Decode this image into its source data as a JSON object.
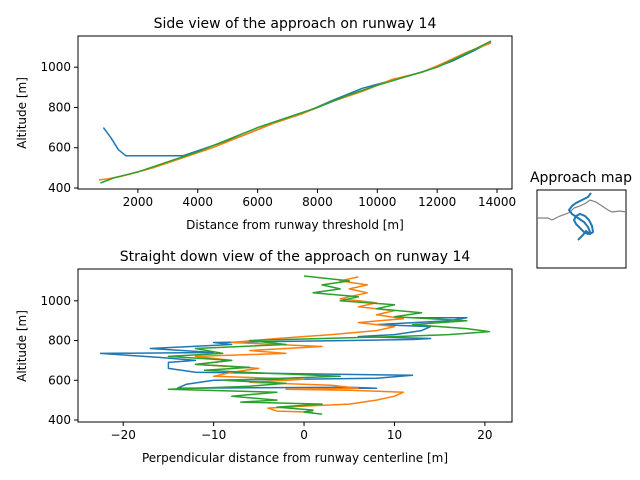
{
  "colors": {
    "series_1": "#1f77b4",
    "series_2": "#ff7f0e",
    "series_3": "#2ca02c",
    "map_line": "#808080"
  },
  "chart_data": [
    {
      "type": "line",
      "title": "Side view of the approach on runway 14",
      "xlabel": "Distance from runway threshold [m]",
      "ylabel": "Altitude [m]",
      "xlim": [
        0,
        14500
      ],
      "ylim": [
        395,
        1155
      ],
      "x_ticks": [
        2000,
        4000,
        6000,
        8000,
        10000,
        12000,
        14000
      ],
      "y_ticks": [
        400,
        600,
        800,
        1000
      ],
      "grid": false,
      "series": [
        {
          "color": "#1f77b4",
          "points": [
            [
              850,
              700
            ],
            [
              1100,
              650
            ],
            [
              1350,
              590
            ],
            [
              1600,
              560
            ],
            [
              2500,
              560
            ],
            [
              3500,
              560
            ],
            [
              4500,
              610
            ],
            [
              5500,
              660
            ],
            [
              6500,
              720
            ],
            [
              7500,
              770
            ],
            [
              8500,
              835
            ],
            [
              9500,
              895
            ],
            [
              10500,
              935
            ],
            [
              11500,
              975
            ],
            [
              12500,
              1030
            ],
            [
              13200,
              1080
            ],
            [
              13800,
              1125
            ]
          ]
        },
        {
          "color": "#ff7f0e",
          "points": [
            [
              700,
              440
            ],
            [
              1000,
              445
            ],
            [
              1500,
              460
            ],
            [
              2500,
              500
            ],
            [
              3500,
              550
            ],
            [
              4500,
              600
            ],
            [
              5500,
              660
            ],
            [
              6500,
              720
            ],
            [
              7500,
              770
            ],
            [
              8500,
              830
            ],
            [
              9500,
              880
            ],
            [
              10500,
              940
            ],
            [
              11500,
              975
            ],
            [
              12200,
              1020
            ],
            [
              13000,
              1075
            ],
            [
              13800,
              1120
            ]
          ]
        },
        {
          "color": "#2ca02c",
          "points": [
            [
              750,
              425
            ],
            [
              1200,
              450
            ],
            [
              2000,
              480
            ],
            [
              3000,
              530
            ],
            [
              4000,
              580
            ],
            [
              5000,
              640
            ],
            [
              6000,
              700
            ],
            [
              7000,
              750
            ],
            [
              8000,
              800
            ],
            [
              9000,
              860
            ],
            [
              10000,
              910
            ],
            [
              11000,
              955
            ],
            [
              12000,
              1000
            ],
            [
              13000,
              1070
            ],
            [
              13800,
              1130
            ]
          ]
        }
      ]
    },
    {
      "type": "line",
      "title": "Straight down view of the approach on runway 14",
      "xlabel": "Perpendicular distance from runway centerline [m]",
      "ylabel": "Altitude [m]",
      "xlim": [
        -25,
        23
      ],
      "ylim": [
        390,
        1160
      ],
      "x_ticks": [
        -20,
        -10,
        0,
        10,
        20
      ],
      "y_ticks": [
        400,
        600,
        800,
        1000
      ],
      "grid": false,
      "series": [
        {
          "color": "#1f77b4",
          "points": [
            [
              2,
              555
            ],
            [
              4,
              560
            ],
            [
              8,
              560
            ],
            [
              5,
              565
            ],
            [
              -14,
              560
            ],
            [
              -13,
              580
            ],
            [
              -10,
              600
            ],
            [
              8,
              610
            ],
            [
              12,
              625
            ],
            [
              -12,
              640
            ],
            [
              -15,
              660
            ],
            [
              -15,
              690
            ],
            [
              -12,
              700
            ],
            [
              -16,
              715
            ],
            [
              -22.5,
              735
            ],
            [
              -10,
              740
            ],
            [
              -17,
              760
            ],
            [
              -8,
              780
            ],
            [
              -10,
              790
            ],
            [
              -3,
              795
            ],
            [
              5,
              800
            ],
            [
              12,
              805
            ],
            [
              14,
              810
            ],
            [
              6,
              820
            ],
            [
              10,
              830
            ],
            [
              13,
              850
            ],
            [
              14,
              870
            ],
            [
              8,
              880
            ],
            [
              16,
              900
            ],
            [
              18,
              915
            ],
            [
              12,
              915
            ]
          ]
        },
        {
          "color": "#ff7f0e",
          "points": [
            [
              1,
              440
            ],
            [
              -3,
              445
            ],
            [
              -4,
              460
            ],
            [
              0,
              470
            ],
            [
              5,
              480
            ],
            [
              8,
              500
            ],
            [
              10,
              520
            ],
            [
              11,
              540
            ],
            [
              5,
              550
            ],
            [
              -2,
              555
            ],
            [
              6,
              560
            ],
            [
              3,
              575
            ],
            [
              -6,
              590
            ],
            [
              0,
              605
            ],
            [
              -10,
              620
            ],
            [
              -8,
              640
            ],
            [
              -5,
              660
            ],
            [
              -12,
              680
            ],
            [
              -8,
              700
            ],
            [
              -12,
              720
            ],
            [
              -2,
              735
            ],
            [
              -6,
              750
            ],
            [
              2,
              770
            ],
            [
              -8,
              790
            ],
            [
              -3,
              810
            ],
            [
              3,
              830
            ],
            [
              8,
              850
            ],
            [
              10,
              870
            ],
            [
              6,
              890
            ],
            [
              11,
              910
            ],
            [
              8,
              930
            ],
            [
              10,
              950
            ],
            [
              6,
              970
            ],
            [
              8,
              990
            ],
            [
              4,
              1010
            ],
            [
              7,
              1040
            ],
            [
              5,
              1060
            ],
            [
              7,
              1080
            ],
            [
              4,
              1100
            ],
            [
              6,
              1120
            ]
          ]
        },
        {
          "color": "#2ca02c",
          "points": [
            [
              2,
              430
            ],
            [
              0,
              440
            ],
            [
              1,
              450
            ],
            [
              -3,
              465
            ],
            [
              2,
              480
            ],
            [
              -7,
              490
            ],
            [
              -3,
              500
            ],
            [
              -8,
              520
            ],
            [
              -3,
              540
            ],
            [
              -15,
              555
            ],
            [
              -6,
              570
            ],
            [
              -2,
              585
            ],
            [
              -9,
              600
            ],
            [
              4,
              620
            ],
            [
              -4,
              635
            ],
            [
              -11,
              650
            ],
            [
              -6,
              665
            ],
            [
              -12,
              680
            ],
            [
              -8,
              700
            ],
            [
              -15,
              720
            ],
            [
              -9,
              735
            ],
            [
              -12,
              760
            ],
            [
              -2,
              780
            ],
            [
              -6,
              800
            ],
            [
              10,
              820
            ],
            [
              16,
              830
            ],
            [
              20.5,
              845
            ],
            [
              18,
              860
            ],
            [
              15,
              870
            ],
            [
              12,
              880
            ],
            [
              18,
              900
            ],
            [
              10,
              920
            ],
            [
              13,
              940
            ],
            [
              8,
              960
            ],
            [
              10,
              980
            ],
            [
              4,
              1000
            ],
            [
              6,
              1020
            ],
            [
              1,
              1040
            ],
            [
              4,
              1060
            ],
            [
              2,
              1080
            ],
            [
              5,
              1100
            ],
            [
              0,
              1125
            ]
          ]
        }
      ]
    }
  ],
  "inset_map": {
    "title": "Approach map"
  }
}
